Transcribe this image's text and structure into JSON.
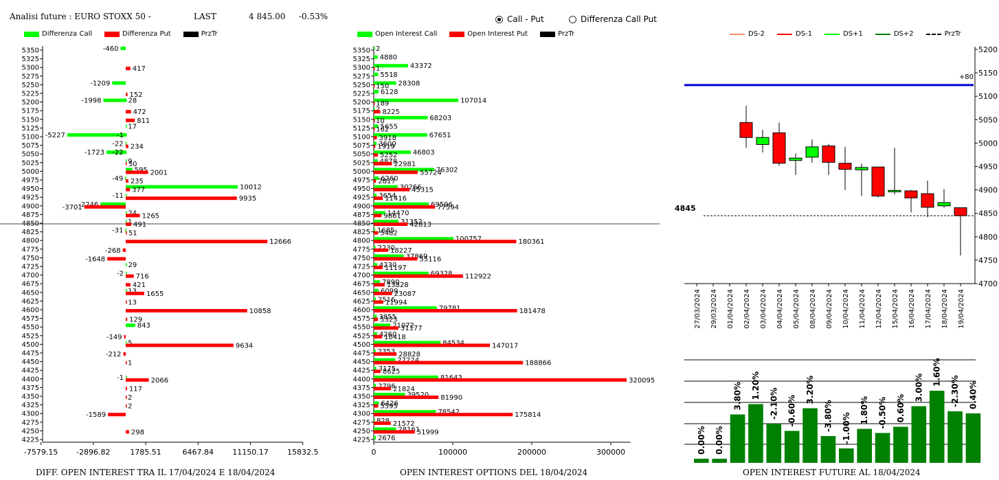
{
  "header": {
    "title": "Analisi future : EURO STOXX 50 -",
    "last_label": "LAST",
    "last_value": "4 845.00",
    "change": "-0.53%"
  },
  "radio": {
    "option1": "Call - Put",
    "option2": "Differenza Call Put",
    "selected": "Call - Put"
  },
  "colors": {
    "green": "#00ff00",
    "red": "#ff0000",
    "black": "#000000",
    "blue": "#0000cc",
    "dark_green": "#008000"
  },
  "strikes": [
    5350,
    5325,
    5300,
    5275,
    5250,
    5225,
    5200,
    5175,
    5150,
    5125,
    5100,
    5075,
    5050,
    5025,
    5000,
    4975,
    4950,
    4925,
    4900,
    4875,
    4850,
    4825,
    4800,
    4775,
    4750,
    4725,
    4700,
    4675,
    4650,
    4625,
    4600,
    4575,
    4550,
    4525,
    4500,
    4475,
    4450,
    4425,
    4400,
    4375,
    4350,
    4325,
    4300,
    4275,
    4250,
    4225
  ],
  "chart_data": [
    {
      "type": "bar",
      "orientation": "horizontal",
      "caption": "DIFF. OPEN INTEREST TRA IL 17/04/2024 E 18/04/2024",
      "legend": [
        "Differenza Call",
        "Differenza Put",
        "PrzTr"
      ],
      "x_ticks": [
        "-7579.15",
        "-2896.82",
        "1785.51",
        "6467.84",
        "11150.17",
        "15832.5"
      ],
      "xlim": [
        -7579.15,
        15832.5
      ],
      "price_line_strike": 4850,
      "series": [
        {
          "name": "Differenza Call",
          "points": [
            {
              "strike": 5350,
              "value": -460
            },
            {
              "strike": 5250,
              "value": -1209
            },
            {
              "strike": 5200,
              "value": -1998
            },
            {
              "strike": 5200,
              "value": 28
            },
            {
              "strike": 5125,
              "value": 17
            },
            {
              "strike": 5100,
              "value": -5227
            },
            {
              "strike": 5100,
              "value": -1
            },
            {
              "strike": 5075,
              "value": -22
            },
            {
              "strike": 5050,
              "value": -1723
            },
            {
              "strike": 5050,
              "value": -22
            },
            {
              "strike": 5025,
              "value": 9
            },
            {
              "strike": 5000,
              "value": 595
            },
            {
              "strike": 4975,
              "value": -49
            },
            {
              "strike": 4950,
              "value": 10012
            },
            {
              "strike": 4925,
              "value": -11
            },
            {
              "strike": 4900,
              "value": -2246
            },
            {
              "strike": 4875,
              "value": 24
            },
            {
              "strike": 4850,
              "value": 1
            },
            {
              "strike": 4825,
              "value": -31
            },
            {
              "strike": 4725,
              "value": 29
            },
            {
              "strike": 4700,
              "value": -2
            },
            {
              "strike": 4650,
              "value": 13
            },
            {
              "strike": 4550,
              "value": 843
            },
            {
              "strike": 4500,
              "value": 5
            },
            {
              "strike": 4400,
              "value": -1
            }
          ]
        },
        {
          "name": "Differenza Put",
          "points": [
            {
              "strike": 5300,
              "value": 417
            },
            {
              "strike": 5225,
              "value": 152
            },
            {
              "strike": 5175,
              "value": 472
            },
            {
              "strike": 5150,
              "value": 811
            },
            {
              "strike": 5075,
              "value": 234
            },
            {
              "strike": 5025,
              "value": 50
            },
            {
              "strike": 5000,
              "value": 2001
            },
            {
              "strike": 4975,
              "value": 235
            },
            {
              "strike": 4925,
              "value": 9935
            },
            {
              "strike": 4950,
              "value": 377
            },
            {
              "strike": 4900,
              "value": -3701
            },
            {
              "strike": 4875,
              "value": 1265
            },
            {
              "strike": 4850,
              "value": 491
            },
            {
              "strike": 4825,
              "value": 51
            },
            {
              "strike": 4800,
              "value": 12666
            },
            {
              "strike": 4775,
              "value": -268
            },
            {
              "strike": 4750,
              "value": -1648
            },
            {
              "strike": 4700,
              "value": 716
            },
            {
              "strike": 4675,
              "value": 421
            },
            {
              "strike": 4650,
              "value": 1655
            },
            {
              "strike": 4625,
              "value": 13
            },
            {
              "strike": 4600,
              "value": 10858
            },
            {
              "strike": 4575,
              "value": 129
            },
            {
              "strike": 4525,
              "value": -149
            },
            {
              "strike": 4500,
              "value": 9634
            },
            {
              "strike": 4475,
              "value": -212
            },
            {
              "strike": 4450,
              "value": 1
            },
            {
              "strike": 4400,
              "value": 2066
            },
            {
              "strike": 4375,
              "value": 117
            },
            {
              "strike": 4350,
              "value": 2
            },
            {
              "strike": 4325,
              "value": 2
            },
            {
              "strike": 4300,
              "value": -1589
            },
            {
              "strike": 4250,
              "value": 298
            }
          ]
        }
      ]
    },
    {
      "type": "bar",
      "orientation": "horizontal",
      "caption": "OPEN INTEREST OPTIONS DEL 18/04/2024",
      "legend": [
        "Open Interest Call",
        "Open Interest Put",
        "PrzTr"
      ],
      "x_ticks": [
        "0",
        "100000",
        "200000",
        "300000"
      ],
      "xlim": [
        0,
        325000
      ],
      "price_line_strike": 4850,
      "series": [
        {
          "name": "Open Interest Call",
          "points": [
            {
              "strike": 5350,
              "value": 2
            },
            {
              "strike": 5325,
              "value": 4880
            },
            {
              "strike": 5300,
              "value": 43372
            },
            {
              "strike": 5275,
              "value": 5518
            },
            {
              "strike": 5250,
              "value": 28308
            },
            {
              "strike": 5225,
              "value": 6128
            },
            {
              "strike": 5200,
              "value": 107014
            },
            {
              "strike": 5175,
              "value": 2
            },
            {
              "strike": 5150,
              "value": 68203
            },
            {
              "strike": 5125,
              "value": 5655
            },
            {
              "strike": 5100,
              "value": 67651
            },
            {
              "strike": 5075,
              "value": 3600
            },
            {
              "strike": 5050,
              "value": 46803
            },
            {
              "strike": 5025,
              "value": 4878
            },
            {
              "strike": 5000,
              "value": 76302
            },
            {
              "strike": 4975,
              "value": 6260
            },
            {
              "strike": 4950,
              "value": 30266
            },
            {
              "strike": 4925,
              "value": 3654
            },
            {
              "strike": 4900,
              "value": 69596
            },
            {
              "strike": 4875,
              "value": 14470
            },
            {
              "strike": 4850,
              "value": 31352
            },
            {
              "strike": 4825,
              "value": 1685
            },
            {
              "strike": 4800,
              "value": 100757
            },
            {
              "strike": 4775,
              "value": 2230
            },
            {
              "strike": 4750,
              "value": 37869
            },
            {
              "strike": 4725,
              "value": 4230
            },
            {
              "strike": 4700,
              "value": 69328
            },
            {
              "strike": 4675,
              "value": 7890
            },
            {
              "strike": 4650,
              "value": 6099
            },
            {
              "strike": 4625,
              "value": 2516
            },
            {
              "strike": 4600,
              "value": 79781
            },
            {
              "strike": 4575,
              "value": 3855
            },
            {
              "strike": 4550,
              "value": 21072
            },
            {
              "strike": 4525,
              "value": 4260
            },
            {
              "strike": 4500,
              "value": 84534
            },
            {
              "strike": 4475,
              "value": 2353
            },
            {
              "strike": 4450,
              "value": 27224
            },
            {
              "strike": 4425,
              "value": 3175
            },
            {
              "strike": 4400,
              "value": 81643
            },
            {
              "strike": 4375,
              "value": 2796
            },
            {
              "strike": 4350,
              "value": 39520
            },
            {
              "strike": 4325,
              "value": 6426
            },
            {
              "strike": 4300,
              "value": 78542
            },
            {
              "strike": 4275,
              "value": 828
            },
            {
              "strike": 4250,
              "value": 28161
            },
            {
              "strike": 4225,
              "value": 2676
            }
          ]
        },
        {
          "name": "Open Interest Put",
          "points": [
            {
              "strike": 5300,
              "value": 1
            },
            {
              "strike": 5250,
              "value": 150
            },
            {
              "strike": 5200,
              "value": 189
            },
            {
              "strike": 5175,
              "value": 8225
            },
            {
              "strike": 5150,
              "value": 10
            },
            {
              "strike": 5125,
              "value": 162
            },
            {
              "strike": 5100,
              "value": 3918
            },
            {
              "strike": 5075,
              "value": 1919
            },
            {
              "strike": 5050,
              "value": 5252
            },
            {
              "strike": 5025,
              "value": 22981
            },
            {
              "strike": 5000,
              "value": 55724
            },
            {
              "strike": 4975,
              "value": 2817
            },
            {
              "strike": 4950,
              "value": 45315
            },
            {
              "strike": 4925,
              "value": 11416
            },
            {
              "strike": 4900,
              "value": 77594
            },
            {
              "strike": 4875,
              "value": 9861
            },
            {
              "strike": 4850,
              "value": 42813
            },
            {
              "strike": 4825,
              "value": 5482
            },
            {
              "strike": 4800,
              "value": 180361
            },
            {
              "strike": 4775,
              "value": 18227
            },
            {
              "strike": 4750,
              "value": 55116
            },
            {
              "strike": 4725,
              "value": 11197
            },
            {
              "strike": 4700,
              "value": 112922
            },
            {
              "strike": 4675,
              "value": 13828
            },
            {
              "strike": 4650,
              "value": 23087
            },
            {
              "strike": 4625,
              "value": 11994
            },
            {
              "strike": 4600,
              "value": 181478
            },
            {
              "strike": 4575,
              "value": 5323
            },
            {
              "strike": 4550,
              "value": 31177
            },
            {
              "strike": 4525,
              "value": 10418
            },
            {
              "strike": 4500,
              "value": 147017
            },
            {
              "strike": 4475,
              "value": 28828
            },
            {
              "strike": 4450,
              "value": 188866
            },
            {
              "strike": 4425,
              "value": 8625
            },
            {
              "strike": 4400,
              "value": 320095
            },
            {
              "strike": 4375,
              "value": 21824
            },
            {
              "strike": 4350,
              "value": 81990
            },
            {
              "strike": 4325,
              "value": 5595
            },
            {
              "strike": 4300,
              "value": 175814
            },
            {
              "strike": 4275,
              "value": 21572
            },
            {
              "strike": 4250,
              "value": 51999
            }
          ]
        }
      ]
    },
    {
      "type": "candlestick",
      "legend": [
        "DS-2",
        "DS-1",
        "DS+1",
        "DS+2",
        "PrzTr"
      ],
      "y_ticks": [
        5200,
        5150,
        5100,
        5050,
        5000,
        4950,
        4900,
        4850,
        4800,
        4750,
        4700
      ],
      "ylim": [
        4700,
        5200
      ],
      "blue_line": 5124,
      "blue_label": "+80",
      "last_price": 4845,
      "last_label": "4845",
      "dates": [
        "27/03/2024",
        "29/03/2024",
        "01/04/2024",
        "02/04/2024",
        "03/04/2024",
        "04/04/2024",
        "05/04/2024",
        "08/04/2024",
        "09/04/2024",
        "10/04/2024",
        "11/04/2024",
        "12/04/2024",
        "15/04/2024",
        "16/04/2024",
        "17/04/2024",
        "18/04/2024",
        "19/04/2024"
      ],
      "candles": [
        {
          "date": "02/04/2024",
          "open": 5044,
          "high": 5080,
          "low": 4990,
          "close": 5012
        },
        {
          "date": "03/04/2024",
          "open": 4997,
          "high": 5028,
          "low": 4980,
          "close": 5012
        },
        {
          "date": "04/04/2024",
          "open": 5022,
          "high": 5044,
          "low": 4952,
          "close": 4957
        },
        {
          "date": "05/04/2024",
          "open": 4963,
          "high": 4978,
          "low": 4932,
          "close": 4968
        },
        {
          "date": "08/04/2024",
          "open": 4970,
          "high": 5008,
          "low": 4958,
          "close": 4992
        },
        {
          "date": "09/04/2024",
          "open": 4994,
          "high": 4998,
          "low": 4932,
          "close": 4959
        },
        {
          "date": "10/04/2024",
          "open": 4957,
          "high": 4992,
          "low": 4900,
          "close": 4944
        },
        {
          "date": "11/04/2024",
          "open": 4943,
          "high": 4956,
          "low": 4887,
          "close": 4948
        },
        {
          "date": "12/04/2024",
          "open": 4949,
          "high": 4950,
          "low": 4884,
          "close": 4887
        },
        {
          "date": "15/04/2024",
          "open": 4899,
          "high": 4990,
          "low": 4890,
          "close": 4899
        },
        {
          "date": "16/04/2024",
          "open": 4898,
          "high": 4900,
          "low": 4852,
          "close": 4883
        },
        {
          "date": "17/04/2024",
          "open": 4892,
          "high": 4920,
          "low": 4842,
          "close": 4863
        },
        {
          "date": "18/04/2024",
          "open": 4866,
          "high": 4902,
          "low": 4862,
          "close": 4873
        },
        {
          "date": "19/04/2024",
          "open": 4862,
          "high": 4862,
          "low": 4760,
          "close": 4845
        }
      ]
    },
    {
      "type": "bar",
      "caption": "OPEN INTEREST FUTURE AL 18/04/2024",
      "labels": [
        "0.00%",
        "0.00%",
        "3.80%",
        "1.20%",
        "-2.10%",
        "-0.60%",
        "3.20%",
        "-3.80%",
        "-1.00%",
        "1.80%",
        "-0.50%",
        "0.60%",
        "3.00%",
        "1.60%",
        "-2.30%",
        "0.40%"
      ],
      "relative_heights": [
        0.04,
        0.04,
        0.47,
        0.57,
        0.38,
        0.31,
        0.53,
        0.26,
        0.14,
        0.33,
        0.29,
        0.35,
        0.55,
        0.7,
        0.5,
        0.48
      ]
    }
  ]
}
